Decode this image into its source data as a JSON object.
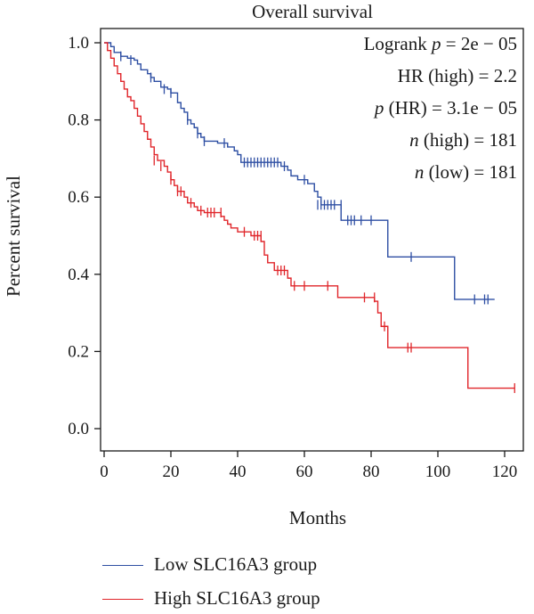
{
  "chart_data": {
    "type": "line",
    "subtype": "kaplan-meier step",
    "title": "Overall survival",
    "xlabel": "Months",
    "ylabel": "Percent survival",
    "xlim": [
      0,
      125
    ],
    "ylim": [
      0,
      1
    ],
    "x_ticks": [
      0,
      20,
      40,
      60,
      80,
      100,
      120
    ],
    "y_ticks": [
      "0.0",
      "0.2",
      "0.4",
      "0.6",
      "0.8",
      "1.0"
    ],
    "grid": false,
    "legend_position": "below-plot",
    "annotations": [
      {
        "italic": "",
        "text": "Logrank",
        "pitalic": "p",
        "rest": " = 2e − 05"
      },
      {
        "italic": "",
        "text": "HR (high) = 2.2",
        "pitalic": "",
        "rest": ""
      },
      {
        "italic": "p",
        "text": " (HR) = 3.1e − 05",
        "pitalic": "",
        "rest": ""
      },
      {
        "italic": "n",
        "text": " (high) = 181",
        "pitalic": "",
        "rest": ""
      },
      {
        "italic": "n",
        "text": " (low) = 181",
        "pitalic": "",
        "rest": ""
      }
    ],
    "series": [
      {
        "name": "Low SLC16A3 group",
        "color": "#2e4fa3",
        "steps": [
          [
            0,
            1.0
          ],
          [
            2,
            0.99
          ],
          [
            3,
            0.975
          ],
          [
            5,
            0.965
          ],
          [
            7,
            0.96
          ],
          [
            9,
            0.955
          ],
          [
            10,
            0.945
          ],
          [
            11,
            0.93
          ],
          [
            13,
            0.92
          ],
          [
            14,
            0.91
          ],
          [
            15,
            0.9
          ],
          [
            17,
            0.885
          ],
          [
            19,
            0.88
          ],
          [
            20,
            0.87
          ],
          [
            22,
            0.845
          ],
          [
            23,
            0.83
          ],
          [
            24,
            0.82
          ],
          [
            25,
            0.8
          ],
          [
            26,
            0.79
          ],
          [
            27,
            0.78
          ],
          [
            28,
            0.765
          ],
          [
            29,
            0.755
          ],
          [
            30,
            0.745
          ],
          [
            34,
            0.74
          ],
          [
            37,
            0.73
          ],
          [
            39,
            0.72
          ],
          [
            40,
            0.71
          ],
          [
            41,
            0.69
          ],
          [
            53,
            0.68
          ],
          [
            55,
            0.67
          ],
          [
            56,
            0.655
          ],
          [
            58,
            0.645
          ],
          [
            61,
            0.635
          ],
          [
            63,
            0.615
          ],
          [
            64,
            0.6
          ],
          [
            65,
            0.58
          ],
          [
            71,
            0.54
          ],
          [
            85,
            0.445
          ],
          [
            105,
            0.335
          ],
          [
            117,
            0.335
          ]
        ],
        "censors": [
          [
            5,
            0.965
          ],
          [
            8,
            0.955
          ],
          [
            14,
            0.91
          ],
          [
            18,
            0.88
          ],
          [
            20,
            0.87
          ],
          [
            25,
            0.8
          ],
          [
            28,
            0.765
          ],
          [
            30,
            0.745
          ],
          [
            36,
            0.74
          ],
          [
            42,
            0.69
          ],
          [
            43,
            0.69
          ],
          [
            44,
            0.69
          ],
          [
            45,
            0.69
          ],
          [
            46,
            0.69
          ],
          [
            47,
            0.69
          ],
          [
            48,
            0.69
          ],
          [
            49,
            0.69
          ],
          [
            50,
            0.69
          ],
          [
            51,
            0.69
          ],
          [
            52,
            0.69
          ],
          [
            54,
            0.68
          ],
          [
            60,
            0.645
          ],
          [
            64,
            0.58
          ],
          [
            65,
            0.58
          ],
          [
            66,
            0.58
          ],
          [
            67,
            0.58
          ],
          [
            68,
            0.58
          ],
          [
            69,
            0.58
          ],
          [
            71,
            0.58
          ],
          [
            73,
            0.54
          ],
          [
            74,
            0.54
          ],
          [
            75,
            0.54
          ],
          [
            77,
            0.54
          ],
          [
            80,
            0.54
          ],
          [
            92,
            0.445
          ],
          [
            111,
            0.335
          ],
          [
            114,
            0.335
          ],
          [
            115,
            0.335
          ]
        ]
      },
      {
        "name": "High SLC16A3 group",
        "color": "#e0252a",
        "steps": [
          [
            0,
            1.0
          ],
          [
            1,
            0.98
          ],
          [
            2,
            0.96
          ],
          [
            3,
            0.94
          ],
          [
            4,
            0.92
          ],
          [
            5,
            0.9
          ],
          [
            6,
            0.88
          ],
          [
            7,
            0.86
          ],
          [
            8,
            0.85
          ],
          [
            9,
            0.83
          ],
          [
            10,
            0.81
          ],
          [
            11,
            0.79
          ],
          [
            12,
            0.77
          ],
          [
            13,
            0.75
          ],
          [
            14,
            0.73
          ],
          [
            15,
            0.71
          ],
          [
            16,
            0.695
          ],
          [
            18,
            0.68
          ],
          [
            19,
            0.665
          ],
          [
            20,
            0.645
          ],
          [
            21,
            0.63
          ],
          [
            22,
            0.615
          ],
          [
            24,
            0.6
          ],
          [
            25,
            0.585
          ],
          [
            27,
            0.575
          ],
          [
            28,
            0.565
          ],
          [
            30,
            0.56
          ],
          [
            35,
            0.55
          ],
          [
            36,
            0.54
          ],
          [
            37,
            0.53
          ],
          [
            38,
            0.52
          ],
          [
            40,
            0.51
          ],
          [
            44,
            0.5
          ],
          [
            47,
            0.485
          ],
          [
            48,
            0.45
          ],
          [
            49,
            0.43
          ],
          [
            51,
            0.41
          ],
          [
            55,
            0.39
          ],
          [
            56,
            0.37
          ],
          [
            70,
            0.34
          ],
          [
            81,
            0.33
          ],
          [
            82,
            0.3
          ],
          [
            83,
            0.265
          ],
          [
            85,
            0.21
          ],
          [
            109,
            0.105
          ],
          [
            123,
            0.105
          ]
        ],
        "censors": [
          [
            15,
            0.695
          ],
          [
            17,
            0.68
          ],
          [
            20,
            0.645
          ],
          [
            22,
            0.615
          ],
          [
            23,
            0.615
          ],
          [
            26,
            0.585
          ],
          [
            29,
            0.565
          ],
          [
            31,
            0.56
          ],
          [
            32,
            0.56
          ],
          [
            33,
            0.56
          ],
          [
            35,
            0.56
          ],
          [
            42,
            0.51
          ],
          [
            45,
            0.5
          ],
          [
            46,
            0.5
          ],
          [
            47,
            0.5
          ],
          [
            52,
            0.41
          ],
          [
            53,
            0.41
          ],
          [
            54,
            0.41
          ],
          [
            57,
            0.37
          ],
          [
            60,
            0.37
          ],
          [
            67,
            0.37
          ],
          [
            78,
            0.34
          ],
          [
            81,
            0.34
          ],
          [
            84,
            0.265
          ],
          [
            91,
            0.21
          ],
          [
            92,
            0.21
          ],
          [
            123,
            0.105
          ]
        ]
      }
    ]
  }
}
